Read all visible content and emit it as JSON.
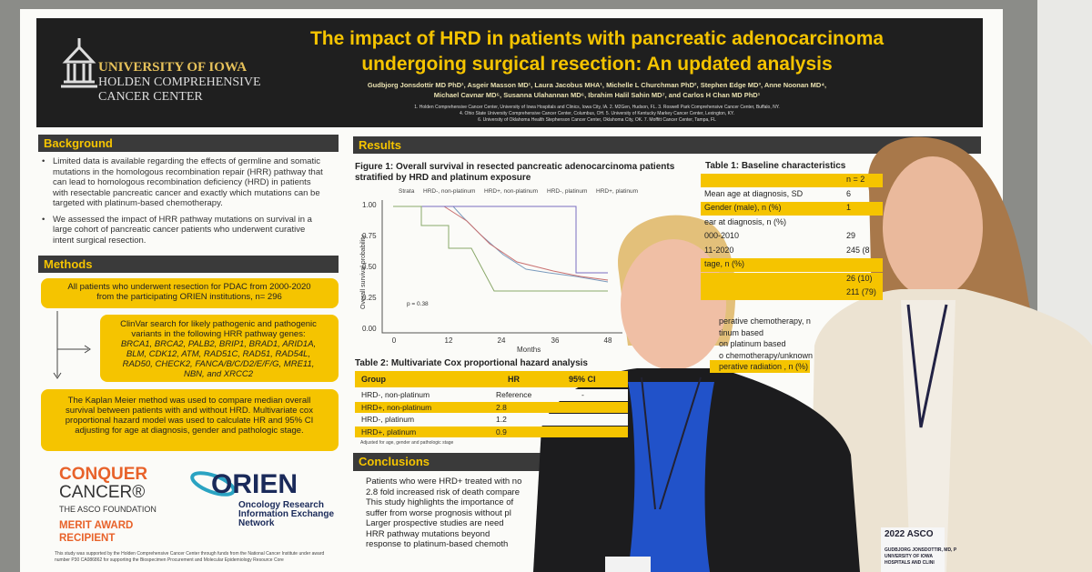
{
  "header": {
    "logo": [
      "UNIVERSITY OF IOWA",
      "HOLDEN COMPREHENSIVE",
      "CANCER CENTER"
    ],
    "title_lines": [
      "The impact of HRD in patients with pancreatic adenocarcinoma",
      "undergoing surgical resection: An updated analysis"
    ],
    "authors": [
      "Gudbjorg Jonsdottir MD PhD¹, Asgeir Masson MD¹, Laura Jacobus MHA¹, Michelle L Churchman PhD², Stephen Edge MD³, Anne Noonan MD⁴,",
      "Michael Cavnar MD⁵, Susanna Ulahannan MD⁶, Ibrahim Halil Sahin MD⁷, and Carlos H Chan MD PhD¹"
    ],
    "affiliations": [
      "1. Holden Comprehensive Cancer Center, University of Iowa Hospitals and Clinics, Iowa City, IA. 2. M2Gen, Hudson, FL. 3. Roswell Park Comprehensive Cancer Center, Buffalo, NY.",
      "4. Ohio State University Comprehensive Cancer Center, Columbus, OH. 5. University of Kentucky Markey Cancer Center, Lexington, KY.",
      "6. University of Oklahoma Health Stephenson Cancer Center, Oklahoma City, OK. 7. Moffitt Cancer Center, Tampa, FL"
    ]
  },
  "background": {
    "heading": "Background",
    "bullets": [
      [
        "Limited data is available regarding the effects of germline and somatic",
        "mutations in the homologous recombination repair (HRR) pathway that",
        "can lead to homologous recombination deficiency (HRD) in patients",
        "with resectable pancreatic cancer and exactly which mutations can be",
        "targeted with platinum-based chemotherapy."
      ],
      [
        "We assessed the impact of HRR pathway mutations on survival in a",
        "large cohort of pancreatic  cancer patients who underwent curative",
        "intent surgical resection."
      ]
    ]
  },
  "methods": {
    "heading": "Methods",
    "boxes": [
      [
        "All patients who underwent resection for PDAC from 2000-2020",
        "from the participating ORIEN institutions, n= 296"
      ],
      [
        "ClinVar search for likely pathogenic and pathogenic",
        "variants in the following HRR pathway genes:",
        "BRCA1, BRCA2, PALB2, BRIP1, BRAD1, ARID1A,",
        "BLM, CDK12, ATM, RAD51C, RAD51, RAD54L,",
        "RAD50, CHECK2, FANCA/B/C/D2/E/F/G, MRE11,",
        "NBN, and XRCC2"
      ],
      [
        "The Kaplan Meier method was used to compare median overall",
        "survival between patients with and without HRD. Multivariate cox",
        "proportional hazard model was used to calculate HR and 95% CI",
        "adjusting for age at diagnosis, gender and pathologic stage."
      ]
    ]
  },
  "logos": {
    "conquer": [
      "CONQUER",
      "CANCER®",
      "THE ASCO FOUNDATION",
      "MERIT AWARD",
      "RECIPIENT"
    ],
    "orien": [
      "ORIEN",
      "Oncology Research",
      "Information Exchange",
      "Network"
    ]
  },
  "funding": [
    "This study was supported by the Holden Comprehensive Cancer Center through funds from the National Cancer Institute under award",
    "number P30 CA086862 for supporting the Biospecimen Procurement and Molecular Epidemiology Resource Core"
  ],
  "results": {
    "heading": "Results",
    "figure_title": [
      "Figure 1:  Overall survival in resected pancreatic adenocarcinoma  patients",
      "stratified by HRD and platinum exposure"
    ],
    "legend": [
      "Strata",
      "HRD-, non-platinum",
      "HRD+, non-platinum",
      "HRD-, platinum",
      "HRD+, platinum"
    ],
    "y_label": "Overall survival probability",
    "y_ticks": [
      "1.00",
      "0.75",
      "0.50",
      "0.25",
      "0.00"
    ],
    "x_ticks": [
      "0",
      "12",
      "24",
      "36",
      "48"
    ],
    "x_label": "Months",
    "p_value": "p = 0.38",
    "table2": {
      "title": "Table 2:  Multivariate Cox proportional hazard analysis",
      "header": [
        "Group",
        "HR",
        "95% CI"
      ],
      "rows": [
        [
          "HRD-, non-platinum",
          "Reference",
          "-"
        ],
        [
          "HRD+, non-platinum",
          "2.8"
        ],
        [
          "HRD-, platinum",
          "1.2"
        ],
        [
          "HRD+, platinum",
          "0.9"
        ]
      ],
      "note": "Adjusted for age, gender and pathologic stage"
    },
    "table1": {
      "title": "Table 1:  Baseline characteristics",
      "rows": [
        [
          "",
          "n = 2"
        ],
        [
          "Mean age at diagnosis, SD",
          "6"
        ],
        [
          "Gender (male), n (%)",
          "1"
        ],
        [
          "ear at diagnosis, n (%)",
          ""
        ],
        [
          "000-2010",
          "29"
        ],
        [
          "11-2020",
          "245 (8"
        ],
        [
          "tage, n (%)",
          ""
        ],
        [
          "",
          "26 (10)"
        ],
        [
          "",
          "211 (79)"
        ]
      ]
    },
    "table1_more": [
      "perative chemotherapy, n",
      "tinum based",
      "on platinum based",
      "o chemotherapy/unknown",
      "perative radiation , n (%)"
    ]
  },
  "conclusions": {
    "heading": "Conclusions",
    "lines": [
      "Patients who were HRD+ treated with no",
      "2.8 fold increased risk of death compare",
      "This study highlights the importance of",
      "suffer from worse prognosis without pl",
      "Larger prospective studies are need",
      "HRR  pathway  mutations  beyond",
      "response to platinum-based chemoth"
    ]
  },
  "badge": [
    "2022 ASCO",
    "GUDBJORG JONSDOTTIR, MD, P",
    "UNIVERSITY OF IOWA",
    "HOSPITALS AND CLINI"
  ]
}
